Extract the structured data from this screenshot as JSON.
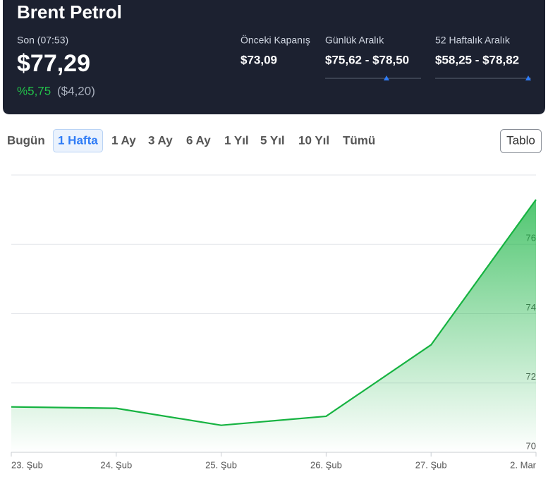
{
  "header": {
    "title": "Brent Petrol",
    "last_label": "Son (07:53)",
    "price": "$77,29",
    "change_pct": "%5,75",
    "change_abs": "($4,20)",
    "stats": [
      {
        "label": "Önceki Kapanış",
        "value": "$73,09"
      },
      {
        "label": "Günlük Aralık",
        "value": "$75,62 - $78,50"
      },
      {
        "label": "52 Haftalık Aralık",
        "value": "$58,25 - $78,82"
      }
    ]
  },
  "tabs": {
    "items": [
      "Bugün",
      "1 Hafta",
      "1 Ay",
      "3 Ay",
      "6 Ay",
      "1 Yıl",
      "5 Yıl",
      "10 Yıl",
      "Tümü"
    ],
    "selected": 1
  },
  "table_button": "Tablo",
  "chart_data": {
    "type": "area",
    "categories": [
      "23. Şub",
      "24. Şub",
      "25. Şub",
      "26. Şub",
      "27. Şub",
      "2. Mar"
    ],
    "values": [
      71.31,
      71.27,
      70.78,
      71.04,
      73.1,
      77.29
    ],
    "color": "#16b341",
    "ylim": [
      70,
      78
    ],
    "yticks": [
      70,
      72,
      74,
      76
    ],
    "grid": true
  }
}
